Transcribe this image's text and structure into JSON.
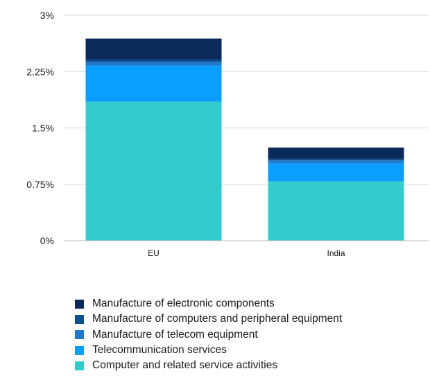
{
  "chart_data": {
    "type": "bar",
    "stacked": true,
    "categories": [
      "EU",
      "India"
    ],
    "ylim": [
      0,
      3
    ],
    "yticks": [
      {
        "value": 0,
        "label": "0%"
      },
      {
        "value": 0.75,
        "label": "0.75%"
      },
      {
        "value": 1.5,
        "label": "1.5%"
      },
      {
        "value": 2.25,
        "label": "2.25%"
      },
      {
        "value": 3,
        "label": "3%"
      }
    ],
    "grid": true,
    "legend_position": "bottom-left",
    "series": [
      {
        "name": "Computer and related service activities",
        "color": "#33CCCC",
        "values": [
          1.85,
          0.79
        ]
      },
      {
        "name": "Telecommunication services",
        "color": "#0A9EFF",
        "values": [
          0.48,
          0.24
        ]
      },
      {
        "name": "Manufacture of telecom equipment",
        "color": "#1F78C8",
        "values": [
          0.05,
          0.04
        ]
      },
      {
        "name": "Manufacture of computers and peripheral equipment",
        "color": "#0D4F8F",
        "values": [
          0.03,
          0.02
        ]
      },
      {
        "name": "Manufacture of electronic components",
        "color": "#0A2A5C",
        "values": [
          0.28,
          0.15
        ]
      }
    ],
    "title": "",
    "xlabel": "",
    "ylabel": ""
  }
}
